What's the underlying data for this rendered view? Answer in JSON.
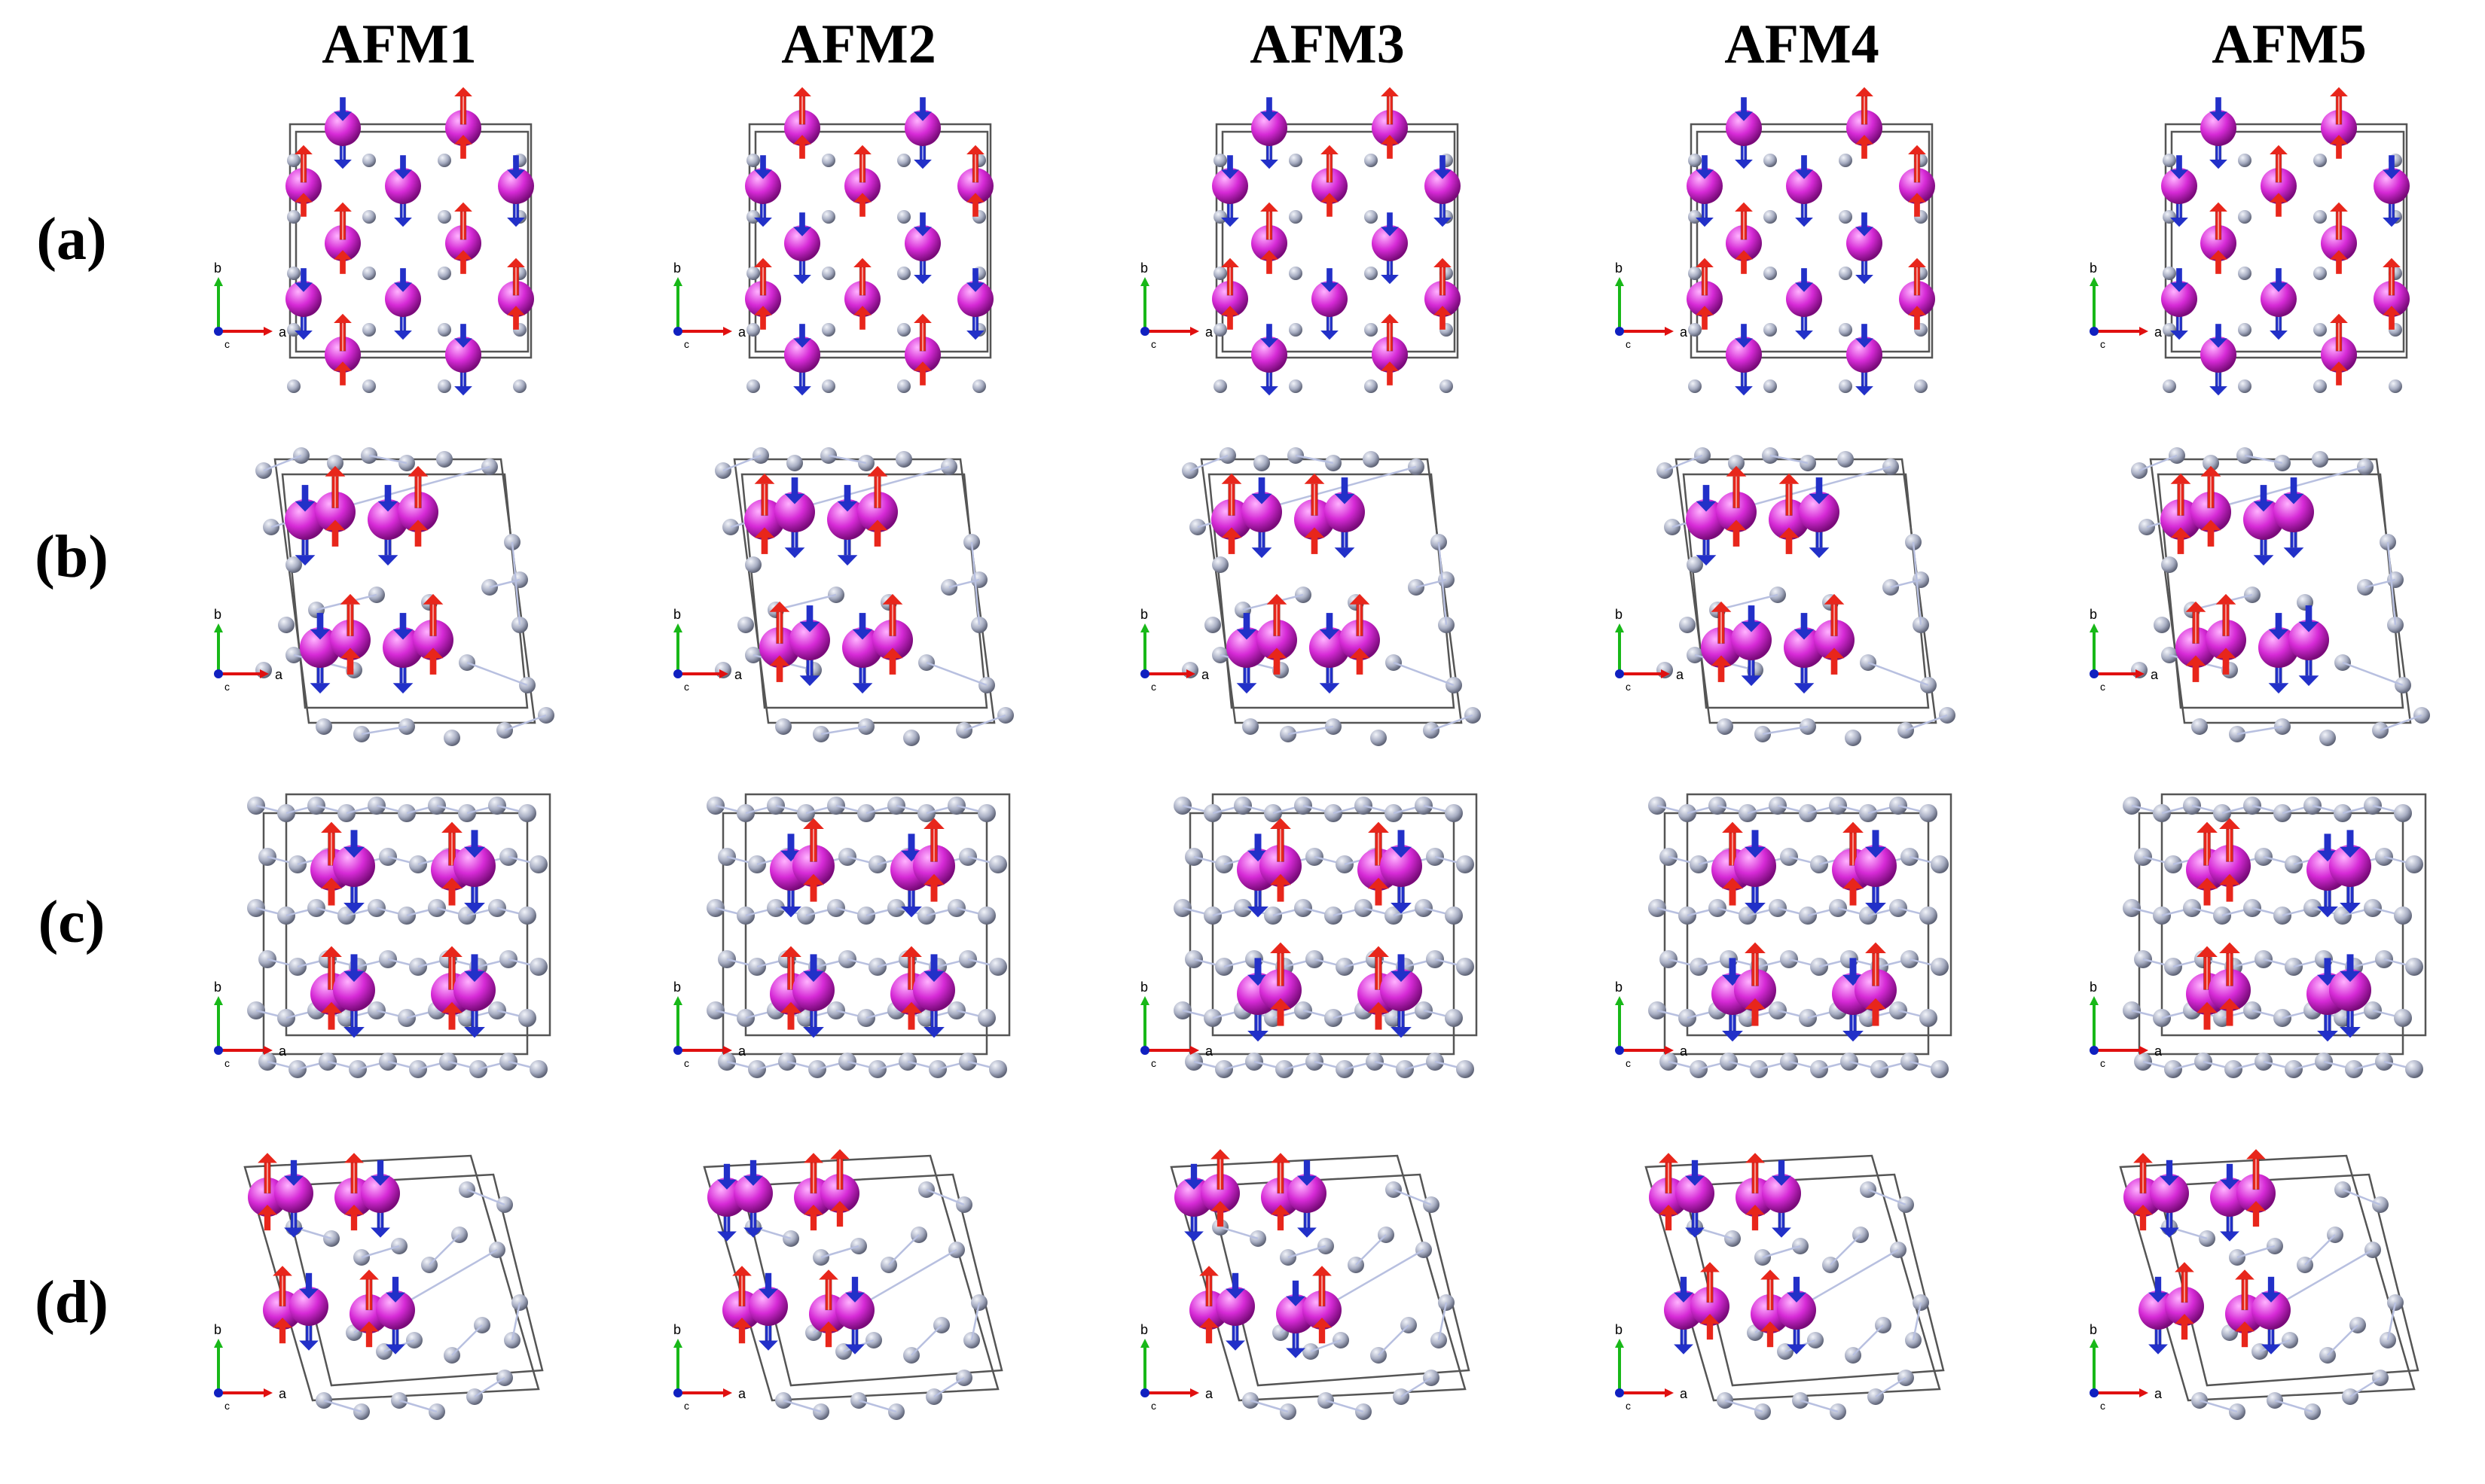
{
  "columns": [
    {
      "id": "afm1",
      "title": "AFM1"
    },
    {
      "id": "afm2",
      "title": "AFM2"
    },
    {
      "id": "afm3",
      "title": "AFM3"
    },
    {
      "id": "afm4",
      "title": "AFM4"
    },
    {
      "id": "afm5",
      "title": "AFM5"
    }
  ],
  "rows": [
    {
      "id": "a",
      "label": "(a)"
    },
    {
      "id": "b",
      "label": "(b)"
    },
    {
      "id": "c",
      "label": "(c)"
    },
    {
      "id": "d",
      "label": "(d)"
    }
  ],
  "axis_labels": {
    "a": "a",
    "b": "b",
    "c": "c"
  },
  "colors": {
    "magnetic_atom": "#d62ad6",
    "magnetic_atom_highlight": "#ffb3ff",
    "nonmagnetic_atom": "#a7adc2",
    "bond": "#b8c0e0",
    "spin_up": "#e8261b",
    "spin_down": "#2230c8",
    "cell_edge": "#555555",
    "axis_a": "#e01010",
    "axis_b": "#18b818",
    "axis_c": "#1020c0"
  },
  "spin_configurations": {
    "a": {
      "afm1": [
        "down",
        "up",
        "up",
        "down",
        "down",
        "up",
        "up",
        "down",
        "down",
        "up",
        "up",
        "down",
        "down",
        "up",
        "up",
        "down"
      ],
      "afm2": [
        "up",
        "down",
        "down",
        "up",
        "up",
        "down",
        "down",
        "up",
        "up",
        "down",
        "down",
        "up",
        "up",
        "down",
        "down",
        "up"
      ],
      "afm3": [
        "down",
        "up",
        "down",
        "up",
        "down",
        "up",
        "down",
        "up",
        "down",
        "up",
        "down",
        "up",
        "down",
        "up",
        "down",
        "up"
      ],
      "afm4": [
        "down",
        "up",
        "down",
        "down",
        "up",
        "up",
        "down",
        "up",
        "down",
        "up",
        "down",
        "down",
        "up",
        "up",
        "down",
        "up"
      ],
      "afm5": [
        "down",
        "up",
        "down",
        "up",
        "down",
        "up",
        "up",
        "down",
        "down",
        "up",
        "down",
        "up",
        "down",
        "up",
        "up",
        "down"
      ]
    },
    "b": {
      "afm1": [
        "down",
        "up",
        "down",
        "up",
        "down",
        "up",
        "down",
        "up"
      ],
      "afm2": [
        "up",
        "down",
        "down",
        "up",
        "up",
        "down",
        "down",
        "up"
      ],
      "afm3": [
        "up",
        "down",
        "up",
        "down",
        "down",
        "up",
        "down",
        "up"
      ],
      "afm4": [
        "down",
        "up",
        "up",
        "down",
        "up",
        "down",
        "down",
        "up"
      ],
      "afm5": [
        "up",
        "up",
        "down",
        "down",
        "up",
        "up",
        "down",
        "down"
      ]
    },
    "c": {
      "afm1": [
        "up",
        "down",
        "up",
        "down",
        "up",
        "down",
        "up",
        "down"
      ],
      "afm2": [
        "down",
        "up",
        "down",
        "up",
        "up",
        "down",
        "up",
        "down"
      ],
      "afm3": [
        "down",
        "up",
        "up",
        "down",
        "down",
        "up",
        "up",
        "down"
      ],
      "afm4": [
        "up",
        "down",
        "up",
        "down",
        "down",
        "up",
        "down",
        "up"
      ],
      "afm5": [
        "up",
        "up",
        "down",
        "down",
        "up",
        "up",
        "down",
        "down"
      ]
    },
    "d": {
      "afm1": [
        "up",
        "down",
        "up",
        "down",
        "up",
        "down",
        "up",
        "down"
      ],
      "afm2": [
        "down",
        "down",
        "up",
        "up",
        "up",
        "down",
        "up",
        "down"
      ],
      "afm3": [
        "down",
        "up",
        "up",
        "down",
        "up",
        "down",
        "down",
        "up"
      ],
      "afm4": [
        "up",
        "down",
        "up",
        "down",
        "down",
        "up",
        "up",
        "down"
      ],
      "afm5": [
        "up",
        "down",
        "down",
        "up",
        "down",
        "up",
        "up",
        "down"
      ]
    }
  }
}
